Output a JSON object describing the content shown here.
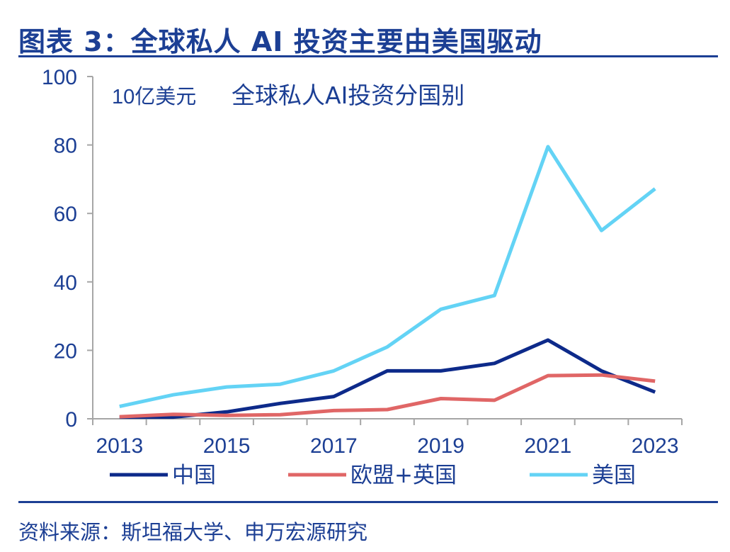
{
  "figure_title": "图表 3：全球私人 AI 投资主要由美国驱动",
  "source": "资料来源：斯坦福大学、申万宏源研究",
  "colors": {
    "frame_blue": "#1c3f94",
    "china": "#0d2a8a",
    "eu_uk": "#e06666",
    "usa": "#63d3f5"
  },
  "chart_data": {
    "type": "line",
    "title": "全球私人AI投资分国别",
    "ylabel": "10亿美元",
    "xlabel": "",
    "x": [
      2013,
      2014,
      2015,
      2016,
      2017,
      2018,
      2019,
      2020,
      2021,
      2022,
      2023
    ],
    "x_tick_labels": [
      "2013",
      "2015",
      "2017",
      "2019",
      "2021",
      "2023"
    ],
    "y_ticks": [
      0,
      20,
      40,
      60,
      80,
      100
    ],
    "ylim": [
      0,
      100
    ],
    "grid": false,
    "legend_position": "bottom",
    "series": [
      {
        "name": "中国",
        "color": "#0d2a8a",
        "values": [
          0.5,
          0.5,
          2.0,
          4.5,
          6.5,
          14.0,
          14.0,
          16.2,
          23.0,
          14.0,
          7.8
        ]
      },
      {
        "name": "欧盟+英国",
        "color": "#e06666",
        "values": [
          0.6,
          1.3,
          1.0,
          1.2,
          2.4,
          2.7,
          5.9,
          5.4,
          12.6,
          12.8,
          11.0
        ]
      },
      {
        "name": "美国",
        "color": "#63d3f5",
        "values": [
          3.6,
          7.0,
          9.3,
          10.1,
          14.0,
          21.0,
          32.0,
          36.0,
          79.5,
          55.0,
          67.2
        ]
      }
    ]
  }
}
